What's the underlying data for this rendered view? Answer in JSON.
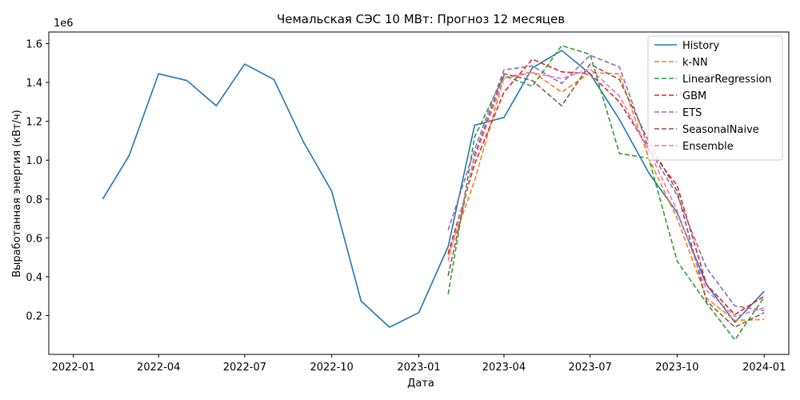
{
  "chart_data": {
    "type": "line",
    "title": "Чемальская СЭС 10 МВт: Прогноз 12 месяцев",
    "xlabel": "Дата",
    "ylabel": "Выработанная энергия (кВт/ч)",
    "y_offset_label": "1e6",
    "y_scale_factor": 1000000,
    "xlim": [
      "2021-12-06",
      "2024-01-27"
    ],
    "ylim": [
      0.0,
      1.66
    ],
    "x_ticks": [
      {
        "date": "2022-01-01",
        "label": "2022-01"
      },
      {
        "date": "2022-04-01",
        "label": "2022-04"
      },
      {
        "date": "2022-07-01",
        "label": "2022-07"
      },
      {
        "date": "2022-10-01",
        "label": "2022-10"
      },
      {
        "date": "2023-01-01",
        "label": "2023-01"
      },
      {
        "date": "2023-04-01",
        "label": "2023-04"
      },
      {
        "date": "2023-07-01",
        "label": "2023-07"
      },
      {
        "date": "2023-10-01",
        "label": "2023-10"
      },
      {
        "date": "2024-01-01",
        "label": "2024-01"
      }
    ],
    "y_ticks": [
      {
        "value": 0.2,
        "label": "0.2"
      },
      {
        "value": 0.4,
        "label": "0.4"
      },
      {
        "value": 0.6,
        "label": "0.6"
      },
      {
        "value": 0.8,
        "label": "0.8"
      },
      {
        "value": 1.0,
        "label": "1.0"
      },
      {
        "value": 1.2,
        "label": "1.2"
      },
      {
        "value": 1.4,
        "label": "1.4"
      },
      {
        "value": 1.6,
        "label": "1.6"
      }
    ],
    "grid": false,
    "legend_position": "top-right",
    "history_x": [
      "2022-02-01",
      "2022-03-01",
      "2022-04-01",
      "2022-05-01",
      "2022-06-01",
      "2022-07-01",
      "2022-08-01",
      "2022-09-01",
      "2022-10-01",
      "2022-11-01",
      "2022-12-01",
      "2023-01-01",
      "2023-02-01",
      "2023-03-01",
      "2023-04-01",
      "2023-05-01",
      "2023-06-01",
      "2023-07-01",
      "2023-08-01",
      "2023-09-01",
      "2023-10-01",
      "2023-11-01",
      "2023-12-01",
      "2024-01-01"
    ],
    "forecast_x": [
      "2023-02-01",
      "2023-03-01",
      "2023-04-01",
      "2023-05-01",
      "2023-06-01",
      "2023-07-01",
      "2023-08-01",
      "2023-09-01",
      "2023-10-01",
      "2023-11-01",
      "2023-12-01",
      "2024-01-01"
    ],
    "series": [
      {
        "name": "History",
        "color": "#1f77b4",
        "dashed": false,
        "x_key": "history_x",
        "values": [
          0.8,
          1.025,
          1.445,
          1.41,
          1.28,
          1.495,
          1.415,
          1.095,
          0.84,
          0.275,
          0.14,
          0.215,
          0.555,
          1.18,
          1.22,
          1.475,
          1.565,
          1.445,
          1.21,
          0.935,
          0.73,
          0.36,
          0.165,
          0.325
        ]
      },
      {
        "name": "k-NN",
        "color": "#ff7f0e",
        "dashed": true,
        "x_key": "forecast_x",
        "values": [
          0.51,
          0.895,
          1.425,
          1.455,
          1.35,
          1.45,
          1.445,
          1.01,
          0.7,
          0.29,
          0.175,
          0.18
        ]
      },
      {
        "name": "LinearRegression",
        "color": "#2ca02c",
        "dashed": true,
        "x_key": "forecast_x",
        "values": [
          0.31,
          1.12,
          1.435,
          1.38,
          1.59,
          1.545,
          1.035,
          1.01,
          0.48,
          0.265,
          0.075,
          0.295
        ]
      },
      {
        "name": "GBM",
        "color": "#d62728",
        "dashed": true,
        "x_key": "forecast_x",
        "values": [
          0.52,
          0.98,
          1.35,
          1.52,
          1.455,
          1.445,
          1.3,
          1.06,
          0.87,
          0.36,
          0.205,
          0.3
        ]
      },
      {
        "name": "ETS",
        "color": "#9467bd",
        "dashed": true,
        "x_key": "forecast_x",
        "values": [
          0.64,
          1.055,
          1.465,
          1.485,
          1.395,
          1.54,
          1.48,
          1.06,
          0.82,
          0.445,
          0.25,
          0.225
        ]
      },
      {
        "name": "SeasonalNaive",
        "color": "#8c564b",
        "dashed": true,
        "x_key": "forecast_x",
        "values": [
          0.405,
          1.025,
          1.445,
          1.41,
          1.28,
          1.495,
          1.415,
          1.095,
          0.84,
          0.275,
          0.14,
          0.215
        ]
      },
      {
        "name": "Ensemble",
        "color": "#e377c2",
        "dashed": true,
        "x_key": "forecast_x",
        "values": [
          0.48,
          1.01,
          1.42,
          1.45,
          1.42,
          1.47,
          1.33,
          1.05,
          0.74,
          0.33,
          0.195,
          0.24
        ]
      }
    ]
  }
}
